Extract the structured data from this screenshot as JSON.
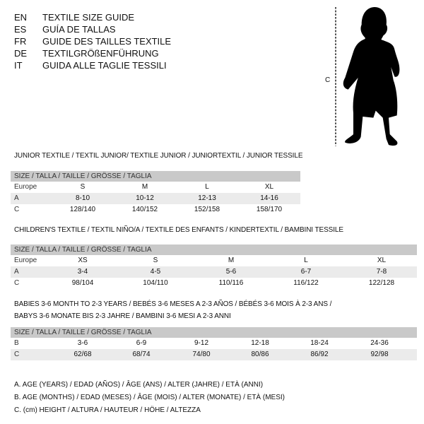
{
  "languages": [
    {
      "code": "EN",
      "text": "TEXTILE SIZE GUIDE"
    },
    {
      "code": "ES",
      "text": "GUÍA DE TALLAS"
    },
    {
      "code": "FR",
      "text": "GUIDE DES TAILLES TEXTILE"
    },
    {
      "code": "DE",
      "text": "TEXTILGRÖßENFÜHRUNG"
    },
    {
      "code": "IT",
      "text": "GUIDA ALLE TAGLIE TESSILI"
    }
  ],
  "figure": {
    "height_label": "C",
    "icon": "child-silhouette-icon"
  },
  "sections": [
    {
      "title_lines": [
        "JUNIOR TEXTILE / TEXTIL JUNIOR/ TEXTILE JUNIOR / JUNIORTEXTIL / JUNIOR TESSILE"
      ],
      "header": "SIZE / TALLA / TAILLE / GRÖSSE / TAGLIA",
      "rows": [
        {
          "label": "Europe",
          "values": [
            "S",
            "M",
            "L",
            "XL"
          ]
        },
        {
          "label": "A",
          "values": [
            "8-10",
            "10-12",
            "12-13",
            "14-16"
          ]
        },
        {
          "label": "C",
          "values": [
            "128/140",
            "140/152",
            "152/158",
            "158/170"
          ]
        }
      ]
    },
    {
      "title_lines": [
        "CHILDREN'S TEXTILE / TEXTIL NIÑO/A / TEXTILE DES ENFANTS / KINDERTEXTIL / BAMBINI TESSILE"
      ],
      "header": "SIZE / TALLA / TAILLE / GRÖSSE / TAGLIA",
      "rows": [
        {
          "label": "Europe",
          "values": [
            "XS",
            "S",
            "M",
            "L",
            "XL"
          ]
        },
        {
          "label": "A",
          "values": [
            "3-4",
            "4-5",
            "5-6",
            "6-7",
            "7-8"
          ]
        },
        {
          "label": "C",
          "values": [
            "98/104",
            "104/110",
            "110/116",
            "116/122",
            "122/128"
          ]
        }
      ]
    },
    {
      "title_lines": [
        "BABIES 3-6 MONTH TO 2-3 YEARS / BEBÉS 3-6 MESES A 2-3 AÑOS / BÉBÉS 3-6 MOIS À 2-3 ANS /",
        "BABYS 3-6 MONATE BIS 2-3 JAHRE / BAMBINI 3-6 MESI A 2-3 ANNI"
      ],
      "header": "SIZE / TALLA / TAILLE / GRÖSSE / TAGLIA",
      "rows": [
        {
          "label": "B",
          "values": [
            "3-6",
            "6-9",
            "9-12",
            "12-18",
            "18-24",
            "24-36"
          ]
        },
        {
          "label": "C",
          "values": [
            "62/68",
            "68/74",
            "74/80",
            "80/86",
            "86/92",
            "92/98"
          ]
        }
      ]
    }
  ],
  "legend": [
    "A. AGE (YEARS) / EDAD (AÑOS) / ÂGE (ANS) / ALTER (JAHRE) / ETÀ (ANNI)",
    "B. AGE (MONTHS) / EDAD (MESES) / ÂGE (MOIS) / ALTER (MONATE) / ETÀ (MESI)",
    "C. (cm) HEIGHT / ALTURA / HAUTEUR / HÖHE / ALTEZZA"
  ]
}
